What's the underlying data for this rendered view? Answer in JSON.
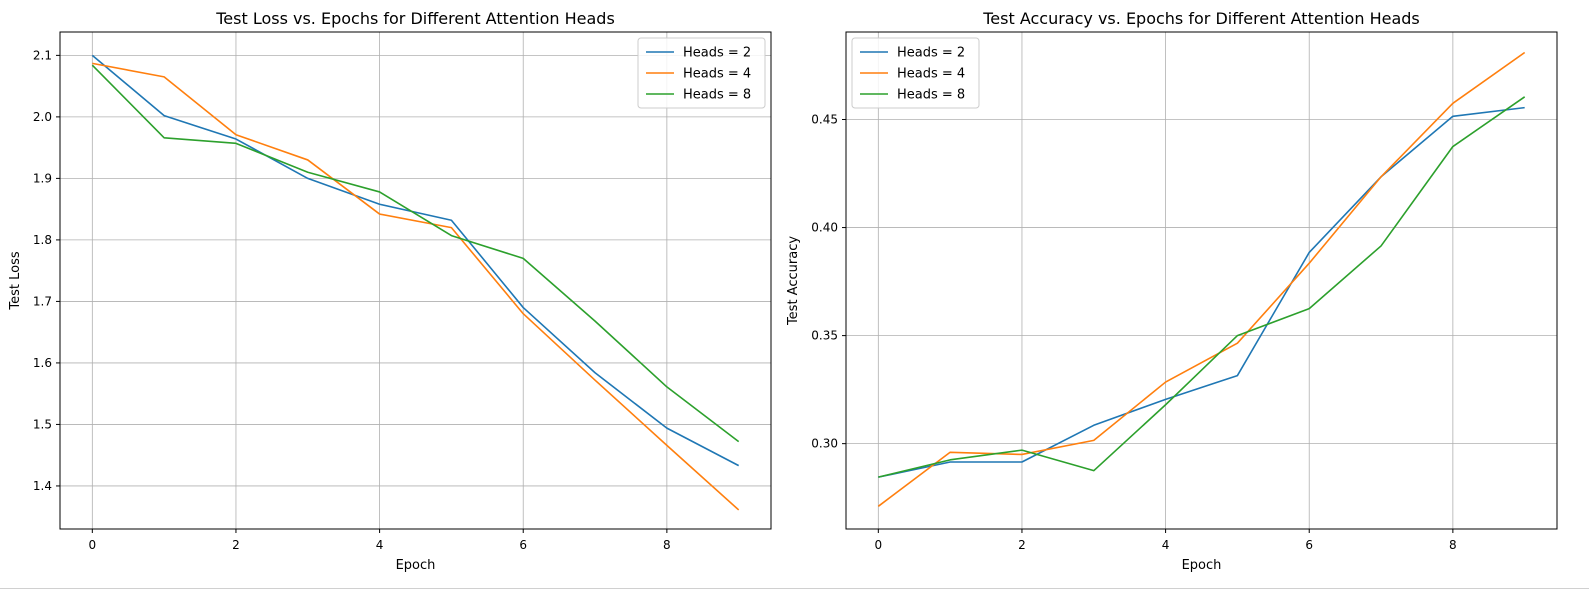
{
  "chart_data": [
    {
      "type": "line",
      "title": "Test Loss vs. Epochs for Different Attention Heads",
      "xlabel": "Epoch",
      "ylabel": "Test Loss",
      "xlim": [
        -0.45,
        9.45
      ],
      "ylim": [
        1.33,
        2.138
      ],
      "xticks": [
        0,
        2,
        4,
        6,
        8
      ],
      "yticks": [
        1.4,
        1.5,
        1.6,
        1.7,
        1.8,
        1.9,
        2.0,
        2.1
      ],
      "ytick_decimals": 1,
      "grid": true,
      "legend_position": "top-right",
      "x": [
        0,
        1,
        2,
        3,
        4,
        5,
        6,
        7,
        8,
        9
      ],
      "series": [
        {
          "name": "Heads = 2",
          "color": "#1f77b4",
          "values": [
            2.1,
            2.002,
            1.964,
            1.9,
            1.858,
            1.832,
            1.69,
            1.584,
            1.494,
            1.433
          ]
        },
        {
          "name": "Heads = 4",
          "color": "#ff7f0e",
          "values": [
            2.087,
            2.065,
            1.971,
            1.93,
            1.842,
            1.82,
            1.68,
            1.572,
            1.466,
            1.361
          ]
        },
        {
          "name": "Heads = 8",
          "color": "#2ca02c",
          "values": [
            2.084,
            1.966,
            1.957,
            1.91,
            1.878,
            1.807,
            1.77,
            1.668,
            1.561,
            1.472
          ]
        }
      ]
    },
    {
      "type": "line",
      "title": "Test Accuracy vs. Epochs for Different Attention Heads",
      "xlabel": "Epoch",
      "ylabel": "Test Accuracy",
      "xlim": [
        -0.45,
        9.45
      ],
      "ylim": [
        0.2605,
        0.4905
      ],
      "xticks": [
        0,
        2,
        4,
        6,
        8
      ],
      "yticks": [
        0.3,
        0.35,
        0.4,
        0.45
      ],
      "ytick_decimals": 2,
      "grid": true,
      "legend_position": "top-left",
      "x": [
        0,
        1,
        2,
        3,
        4,
        5,
        6,
        7,
        8,
        9
      ],
      "series": [
        {
          "name": "Heads = 2",
          "color": "#1f77b4",
          "values": [
            0.2845,
            0.2915,
            0.2915,
            0.3085,
            0.3205,
            0.3315,
            0.3885,
            0.4235,
            0.4515,
            0.4555
          ]
        },
        {
          "name": "Heads = 4",
          "color": "#ff7f0e",
          "values": [
            0.271,
            0.296,
            0.295,
            0.3015,
            0.3285,
            0.3465,
            0.3835,
            0.4235,
            0.4575,
            0.481
          ]
        },
        {
          "name": "Heads = 8",
          "color": "#2ca02c",
          "values": [
            0.2845,
            0.2925,
            0.297,
            0.2875,
            0.318,
            0.35,
            0.3625,
            0.3915,
            0.4375,
            0.4605
          ]
        }
      ]
    }
  ]
}
